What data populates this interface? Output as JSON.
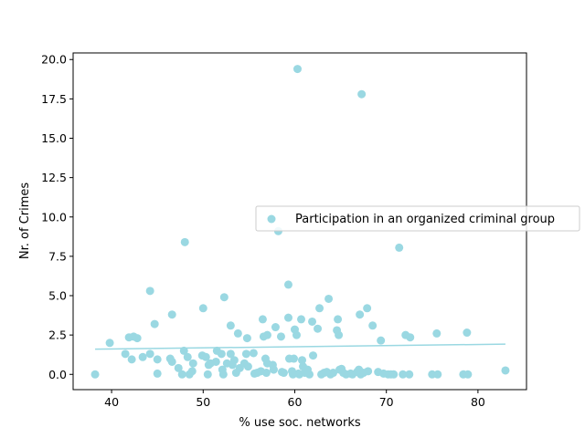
{
  "chart_data": {
    "type": "scatter",
    "xlabel": "% use soc. networks",
    "ylabel": "Nr. of Crimes",
    "xlim": [
      35.8,
      85.3
    ],
    "ylim": [
      -0.97,
      20.42
    ],
    "x_ticks": [
      40,
      50,
      60,
      70,
      80
    ],
    "x_tick_labels": [
      "40",
      "50",
      "60",
      "70",
      "80"
    ],
    "y_ticks": [
      0,
      2.5,
      5,
      7.5,
      10,
      12.5,
      15,
      17.5,
      20
    ],
    "y_tick_labels": [
      "0.0",
      "2.5",
      "5.0",
      "7.5",
      "10.0",
      "12.5",
      "15.0",
      "17.5",
      "20.0"
    ],
    "grid": false,
    "legend": {
      "placement": "center-right"
    },
    "series": [
      {
        "name": "Participation in an organized criminal group",
        "color": "#9ad8e2",
        "points": [
          [
            38.2,
            0.0
          ],
          [
            39.8,
            2.0
          ],
          [
            41.5,
            1.3
          ],
          [
            41.9,
            2.35
          ],
          [
            42.2,
            0.95
          ],
          [
            42.4,
            2.4
          ],
          [
            42.8,
            2.3
          ],
          [
            43.4,
            1.1
          ],
          [
            44.2,
            1.3
          ],
          [
            44.2,
            5.3
          ],
          [
            44.7,
            3.2
          ],
          [
            45.0,
            0.05
          ],
          [
            45.0,
            0.95
          ],
          [
            46.4,
            1.0
          ],
          [
            46.6,
            0.8
          ],
          [
            46.6,
            3.8
          ],
          [
            47.3,
            0.4
          ],
          [
            47.7,
            0.0
          ],
          [
            47.9,
            1.5
          ],
          [
            48.0,
            8.4
          ],
          [
            48.3,
            1.1
          ],
          [
            48.5,
            0.0
          ],
          [
            48.8,
            0.2
          ],
          [
            48.9,
            0.7
          ],
          [
            49.9,
            1.2
          ],
          [
            50.0,
            4.2
          ],
          [
            50.3,
            1.1
          ],
          [
            50.5,
            0.0
          ],
          [
            50.6,
            0.6
          ],
          [
            50.8,
            0.7
          ],
          [
            51.4,
            0.8
          ],
          [
            51.5,
            1.5
          ],
          [
            52.0,
            1.3
          ],
          [
            52.1,
            0.3
          ],
          [
            52.2,
            0.0
          ],
          [
            52.3,
            4.9
          ],
          [
            52.6,
            0.7
          ],
          [
            53.0,
            1.3
          ],
          [
            53.0,
            3.1
          ],
          [
            53.2,
            0.6
          ],
          [
            53.4,
            0.9
          ],
          [
            53.6,
            0.1
          ],
          [
            53.8,
            2.6
          ],
          [
            54.0,
            0.4
          ],
          [
            54.5,
            0.7
          ],
          [
            54.7,
            1.3
          ],
          [
            54.8,
            2.3
          ],
          [
            54.9,
            0.5
          ],
          [
            55.5,
            1.35
          ],
          [
            55.6,
            0.05
          ],
          [
            55.9,
            0.1
          ],
          [
            56.3,
            0.2
          ],
          [
            56.5,
            3.5
          ],
          [
            56.6,
            2.4
          ],
          [
            56.8,
            1.0
          ],
          [
            56.9,
            0.1
          ],
          [
            57.0,
            2.5
          ],
          [
            57.0,
            0.7
          ],
          [
            57.6,
            0.6
          ],
          [
            57.7,
            0.3
          ],
          [
            57.9,
            3.0
          ],
          [
            58.2,
            9.1
          ],
          [
            58.5,
            2.4
          ],
          [
            58.6,
            0.15
          ],
          [
            58.8,
            0.1
          ],
          [
            59.3,
            5.7
          ],
          [
            59.3,
            3.6
          ],
          [
            59.4,
            1.0
          ],
          [
            59.7,
            0.2
          ],
          [
            59.8,
            0.0
          ],
          [
            59.9,
            1.0
          ],
          [
            60.0,
            2.85
          ],
          [
            60.2,
            2.5
          ],
          [
            60.3,
            19.4
          ],
          [
            60.4,
            0.05
          ],
          [
            60.5,
            0.0
          ],
          [
            60.7,
            3.5
          ],
          [
            60.8,
            0.9
          ],
          [
            60.9,
            0.5
          ],
          [
            61.1,
            0.1
          ],
          [
            61.4,
            0.3
          ],
          [
            61.6,
            0.0
          ],
          [
            61.9,
            3.35
          ],
          [
            62.0,
            1.2
          ],
          [
            62.5,
            2.9
          ],
          [
            62.7,
            4.2
          ],
          [
            62.9,
            0.0
          ],
          [
            63.2,
            0.1
          ],
          [
            63.5,
            0.15
          ],
          [
            63.7,
            4.8
          ],
          [
            63.9,
            0.0
          ],
          [
            64.2,
            0.1
          ],
          [
            64.6,
            2.8
          ],
          [
            64.7,
            3.5
          ],
          [
            64.8,
            2.5
          ],
          [
            64.9,
            0.3
          ],
          [
            65.1,
            0.35
          ],
          [
            65.3,
            0.1
          ],
          [
            65.6,
            0.0
          ],
          [
            66.1,
            0.05
          ],
          [
            66.3,
            0.0
          ],
          [
            66.8,
            0.15
          ],
          [
            67.0,
            0.3
          ],
          [
            67.1,
            3.8
          ],
          [
            67.2,
            0.0
          ],
          [
            67.3,
            17.8
          ],
          [
            67.5,
            0.1
          ],
          [
            67.9,
            4.2
          ],
          [
            68.0,
            0.2
          ],
          [
            68.5,
            3.1
          ],
          [
            69.1,
            0.15
          ],
          [
            69.4,
            2.15
          ],
          [
            69.7,
            0.05
          ],
          [
            70.2,
            0.0
          ],
          [
            70.5,
            0.0
          ],
          [
            70.8,
            0.0
          ],
          [
            71.4,
            8.05
          ],
          [
            71.8,
            0.0
          ],
          [
            72.1,
            2.5
          ],
          [
            72.5,
            0.0
          ],
          [
            72.6,
            2.35
          ],
          [
            75.0,
            0.0
          ],
          [
            75.5,
            2.6
          ],
          [
            75.6,
            0.0
          ],
          [
            78.4,
            0.0
          ],
          [
            78.8,
            2.65
          ],
          [
            78.9,
            0.0
          ],
          [
            83.0,
            0.25
          ]
        ]
      }
    ],
    "trendline": {
      "x": [
        38.2,
        83.0
      ],
      "y": [
        1.6,
        1.92
      ],
      "color": "#9ad8e2"
    }
  }
}
